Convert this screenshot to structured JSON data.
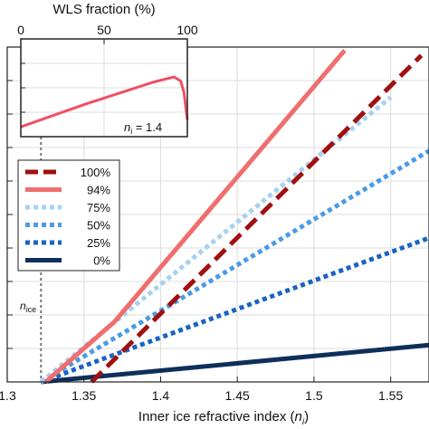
{
  "chart_data": [
    {
      "type": "line",
      "xlabel_text": "Inner ice refractive index (",
      "xlabel_var": "n",
      "xlabel_sub": "i",
      "xlabel_close": ")",
      "xlim": [
        1.3,
        1.575
      ],
      "xticks": [
        1.3,
        1.35,
        1.4,
        1.45,
        1.5,
        1.55
      ],
      "xtick_labels": [
        "1.3",
        "1.35",
        "1.4",
        "1.45",
        "1.5",
        "1.55"
      ],
      "ylim": [
        0,
        1
      ],
      "yticks_count": 11,
      "grid": true,
      "legend_position": "left",
      "series": [
        {
          "name": "100%",
          "color": "#a01010",
          "style": "dashed",
          "points": [
            [
              1.355,
              0.0
            ],
            [
              1.57,
              0.975
            ]
          ]
        },
        {
          "name": "94%",
          "color": "#ef6e6e",
          "style": "solid",
          "points": [
            [
              1.325,
              0.0
            ],
            [
              1.37,
              0.18
            ],
            [
              1.42,
              0.45
            ],
            [
              1.47,
              0.72
            ],
            [
              1.52,
              0.99
            ]
          ]
        },
        {
          "name": "75%",
          "color": "#a8d0f0",
          "style": "dotted",
          "points": [
            [
              1.322,
              0.0
            ],
            [
              1.55,
              0.85
            ]
          ]
        },
        {
          "name": "50%",
          "color": "#4b9be6",
          "style": "dotted",
          "points": [
            [
              1.322,
              0.0
            ],
            [
              1.575,
              0.69
            ]
          ]
        },
        {
          "name": "25%",
          "color": "#1a63c3",
          "style": "dotted",
          "points": [
            [
              1.322,
              0.0
            ],
            [
              1.575,
              0.43
            ]
          ]
        },
        {
          "name": "0%",
          "color": "#0e2f5c",
          "style": "solid",
          "points": [
            [
              1.322,
              0.0
            ],
            [
              1.575,
              0.11
            ]
          ]
        }
      ],
      "annotation": {
        "var": "n",
        "sub": "ice",
        "x": 1.322
      }
    },
    {
      "type": "line",
      "title": "WLS fraction (%)",
      "xlim": [
        0,
        100
      ],
      "xticks": [
        0,
        50,
        100
      ],
      "xtick_labels": [
        "0",
        "50",
        "100"
      ],
      "ylim": [
        0,
        1
      ],
      "yticks_count": 5,
      "grid": true,
      "annotation": {
        "var": "n",
        "sub": "i",
        "text": " = 1.4"
      },
      "series": [
        {
          "color": "#ef4f64",
          "style": "solid",
          "points": [
            [
              0,
              0.1
            ],
            [
              20,
              0.22
            ],
            [
              40,
              0.34
            ],
            [
              60,
              0.45
            ],
            [
              80,
              0.56
            ],
            [
              92,
              0.61
            ],
            [
              96,
              0.57
            ],
            [
              98,
              0.45
            ],
            [
              100,
              0.17
            ]
          ]
        }
      ]
    }
  ]
}
